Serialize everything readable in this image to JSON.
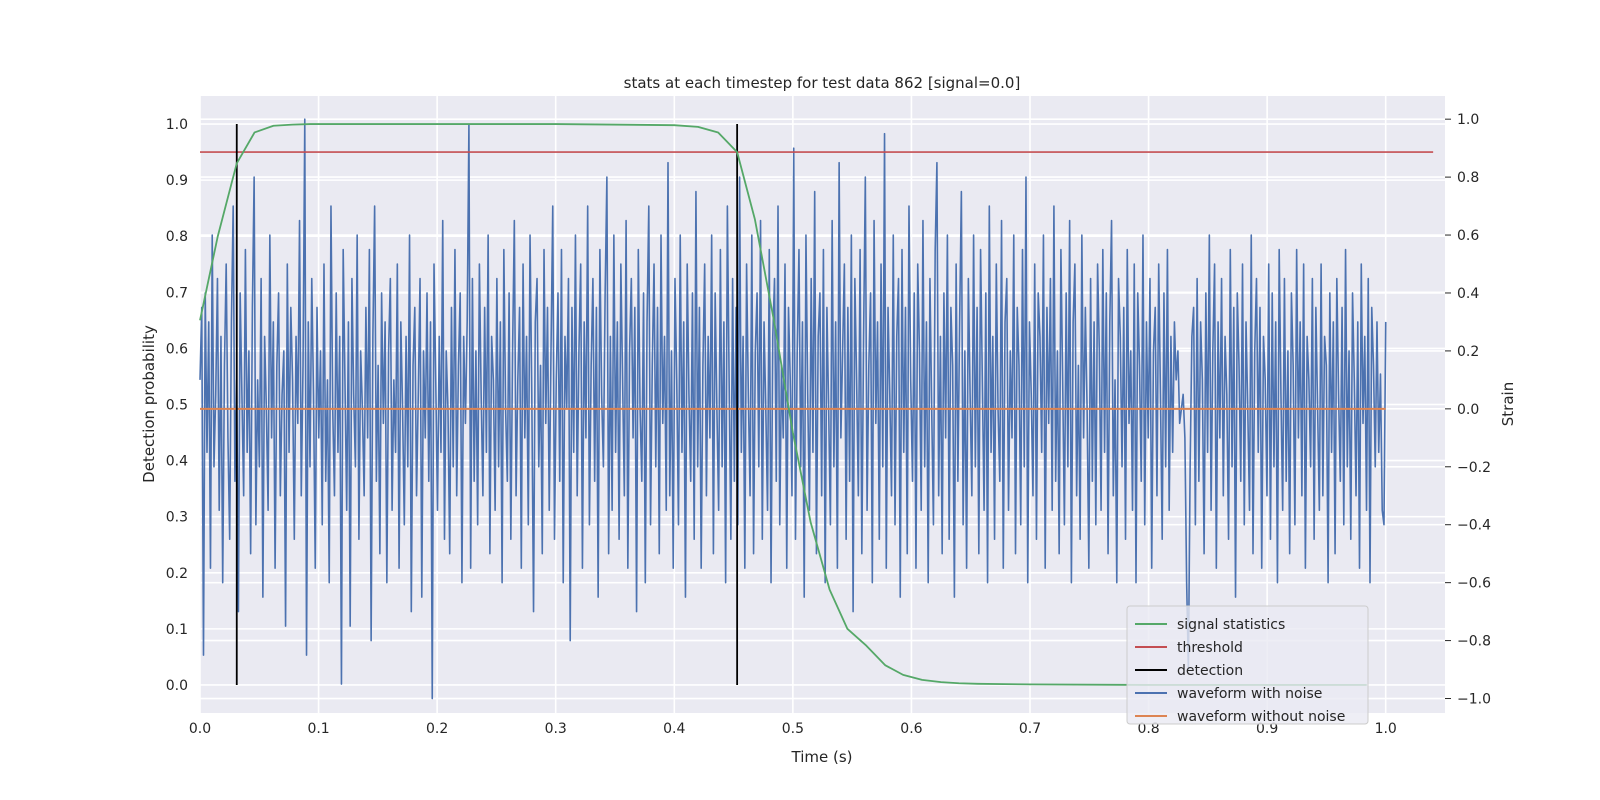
{
  "chart_data": {
    "type": "line",
    "title": "stats at each timestep for test data 862 [signal=0.0]",
    "xlabel": "Time (s)",
    "ylabel_left": "Detection probability",
    "ylabel_right": "Strain",
    "xlim": [
      0.0,
      1.05
    ],
    "ylim_left": [
      -0.05,
      1.05
    ],
    "ylim_right": [
      -1.05,
      1.08
    ],
    "x_ticks": [
      "0.0",
      "0.1",
      "0.2",
      "0.3",
      "0.4",
      "0.5",
      "0.6",
      "0.7",
      "0.8",
      "0.9",
      "1.0"
    ],
    "y_ticks_left": [
      "0.0",
      "0.1",
      "0.2",
      "0.3",
      "0.4",
      "0.5",
      "0.6",
      "0.7",
      "0.8",
      "0.9",
      "1.0"
    ],
    "y_ticks_right": [
      "−1.0",
      "−0.8",
      "−0.6",
      "−0.4",
      "−0.2",
      "0.0",
      "0.2",
      "0.4",
      "0.6",
      "0.8",
      "1.0"
    ],
    "grid": true,
    "legend_position": "lower-right",
    "colors": {
      "background": "#eaeaf2",
      "grid": "#ffffff",
      "signal_statistics": "#55a868",
      "threshold": "#c44e52",
      "detection": "#000000",
      "waveform_with_noise": "#4c72b0",
      "waveform_without_noise": "#dd8452"
    },
    "series": [
      {
        "name": "signal statistics",
        "axis": "left",
        "x": [
          0.0,
          0.015,
          0.031,
          0.046,
          0.062,
          0.078,
          0.093,
          0.12,
          0.2,
          0.3,
          0.4,
          0.42,
          0.437,
          0.453,
          0.468,
          0.484,
          0.5,
          0.515,
          0.531,
          0.546,
          0.562,
          0.578,
          0.593,
          0.609,
          0.625,
          0.64,
          0.656,
          0.7,
          0.8,
          0.9,
          0.984
        ],
        "y": [
          0.65,
          0.8,
          0.93,
          0.985,
          0.997,
          0.999,
          1.0,
          1.0,
          1.0,
          1.0,
          0.998,
          0.995,
          0.985,
          0.95,
          0.83,
          0.65,
          0.45,
          0.29,
          0.17,
          0.1,
          0.07,
          0.035,
          0.018,
          0.009,
          0.005,
          0.003,
          0.002,
          0.001,
          0.0,
          0.0,
          0.0
        ]
      },
      {
        "name": "threshold",
        "axis": "left",
        "x": [
          0.0,
          1.04
        ],
        "y": [
          0.95,
          0.95
        ]
      },
      {
        "name": "detection",
        "axis": "left",
        "x": [
          0.031,
          0.453
        ],
        "ymin": 0.0,
        "ymax": 1.0
      },
      {
        "name": "waveform with noise",
        "axis": "right",
        "x_start": 0.0,
        "x_end": 1.0,
        "y": [
          0.1,
          0.35,
          -0.85,
          0.4,
          -0.15,
          0.3,
          -0.55,
          0.6,
          -0.2,
          0.05,
          0.45,
          -0.35,
          0.25,
          -0.6,
          0.15,
          0.5,
          -0.1,
          -0.45,
          0.3,
          0.7,
          -0.25,
          0.1,
          -0.7,
          0.4,
          0.05,
          -0.3,
          0.55,
          -0.15,
          0.2,
          -0.5,
          0.35,
          0.8,
          -0.4,
          0.1,
          -0.2,
          0.45,
          -0.65,
          0.25,
          0.0,
          -0.35,
          0.6,
          -0.1,
          0.3,
          -0.55,
          0.15,
          0.4,
          -0.3,
          0.05,
          0.2,
          -0.75,
          0.5,
          -0.15,
          0.35,
          0.1,
          -0.45,
          0.25,
          -0.05,
          0.65,
          -0.3,
          0.15,
          1.0,
          -0.85,
          0.3,
          -0.2,
          0.45,
          0.05,
          -0.55,
          0.35,
          -0.1,
          0.2,
          -0.4,
          0.5,
          -0.25,
          0.1,
          -0.6,
          0.7,
          0.0,
          -0.3,
          0.4,
          -0.15,
          0.25,
          -0.95,
          0.55,
          0.1,
          -0.35,
          0.3,
          -0.75,
          0.45,
          0.05,
          -0.2,
          0.6,
          -0.45,
          0.2,
          0.0,
          -0.3,
          0.35,
          -0.1,
          0.55,
          -0.8,
          0.25,
          0.7,
          -0.25,
          0.15,
          -0.5,
          0.4,
          -0.05,
          0.3,
          -0.6,
          0.2,
          0.45,
          -0.35,
          0.1,
          -0.15,
          0.5,
          -0.55,
          0.3,
          0.0,
          -0.4,
          0.25,
          -0.2,
          0.6,
          -0.7,
          0.15,
          0.35,
          -0.3,
          0.05,
          0.45,
          -0.65,
          0.2,
          -0.1,
          0.4,
          -0.25,
          0.3,
          -1.0,
          0.5,
          0.1,
          -0.35,
          0.25,
          -0.15,
          0.65,
          -0.45,
          0.2,
          0.0,
          -0.5,
          0.35,
          -0.2,
          0.55,
          -0.3,
          0.15,
          0.4,
          -0.6,
          0.25,
          -0.05,
          0.3,
          0.98,
          -0.55,
          0.45,
          -0.25,
          0.2,
          -0.4,
          0.5,
          0.05,
          -0.3,
          0.35,
          -0.15,
          0.6,
          -0.5,
          0.25,
          0.1,
          -0.35,
          0.45,
          -0.2,
          0.3,
          -0.6,
          0.55,
          0.0,
          -0.25,
          0.4,
          -0.45,
          0.2,
          0.65,
          -0.3,
          0.1,
          0.35,
          -0.55,
          0.5,
          -0.1,
          0.25,
          -0.4,
          0.6,
          0.05,
          -0.7,
          0.3,
          0.45,
          -0.2,
          0.15,
          -0.5,
          0.55,
          -0.05,
          0.35,
          -0.35,
          0.2,
          0.7,
          -0.45,
          0.1,
          0.4,
          -0.25,
          0.55,
          -0.6,
          0.25,
          0.0,
          0.45,
          -0.8,
          0.35,
          -0.15,
          0.6,
          -0.3,
          0.2,
          0.5,
          -0.55,
          0.3,
          -0.1,
          0.7,
          -0.4,
          0.15,
          0.45,
          -0.25,
          0.35,
          -0.65,
          0.55,
          0.05,
          -0.2,
          0.4,
          0.8,
          -0.5,
          0.25,
          -0.35,
          0.6,
          -0.15,
          0.3,
          -0.45,
          0.5,
          0.1,
          -0.3,
          0.65,
          -0.55,
          0.2,
          0.45,
          -0.1,
          0.35,
          -0.7,
          0.55,
          0.0,
          -0.25,
          0.4,
          -0.6,
          0.3,
          0.7,
          -0.4,
          0.15,
          0.5,
          -0.2,
          0.35,
          -0.5,
          0.6,
          -0.05,
          0.25,
          -0.35,
          0.85,
          -0.3,
          0.2,
          -0.55,
          0.45,
          0.1,
          -0.4,
          0.6,
          -0.15,
          0.3,
          -0.65,
          0.5,
          0.05,
          -0.25,
          0.4,
          -0.45,
          0.75,
          -0.2,
          0.35,
          -0.55,
          0.15,
          0.5,
          -0.3,
          0.25,
          -0.1,
          0.6,
          -0.5,
          0.4,
          0.0,
          -0.35,
          0.55,
          -0.2,
          0.3,
          -0.6,
          0.7,
          0.1,
          -0.45,
          0.45,
          -0.25,
          0.35,
          -0.4,
          0.8,
          -0.15,
          0.25,
          -0.55,
          0.5,
          0.05,
          -0.3,
          0.6,
          -0.5,
          0.2,
          0.4,
          -0.2,
          0.65,
          -0.45,
          0.3,
          0.0,
          -0.35,
          0.55,
          -0.6,
          0.25,
          0.45,
          -0.25,
          0.7,
          -0.4,
          0.15,
          -0.1,
          0.5,
          -0.55,
          0.35,
          0.1,
          -0.3,
          0.9,
          -0.45,
          0.2,
          0.55,
          -0.2,
          0.3,
          -0.65,
          0.6,
          0.05,
          -0.35,
          0.45,
          -0.15,
          0.75,
          -0.5,
          0.25,
          0.4,
          -0.3,
          0.55,
          -0.6,
          0.35,
          0.0,
          -0.4,
          0.65,
          -0.2,
          0.3,
          -0.55,
          0.85,
          -0.1,
          0.2,
          0.5,
          -0.45,
          0.35,
          -0.25,
          0.6,
          -0.7,
          0.45,
          0.1,
          -0.3,
          0.55,
          -0.5,
          0.25,
          0.8,
          -0.35,
          0.15,
          0.4,
          -0.6,
          0.65,
          -0.05,
          0.3,
          -0.45,
          0.5,
          -0.2,
          0.95,
          -0.55,
          0.35,
          0.05,
          -0.3,
          0.6,
          -0.4,
          0.25,
          0.45,
          -0.65,
          0.55,
          -0.15,
          0.35,
          -0.5,
          0.7,
          0.1,
          -0.25,
          0.4,
          -0.55,
          0.5,
          0.2,
          -0.35,
          0.65,
          -0.2,
          0.3,
          -0.6,
          0.45,
          0.0,
          -0.4,
          0.55,
          0.85,
          -0.3,
          0.25,
          -0.5,
          0.4,
          -0.1,
          0.6,
          -0.45,
          0.35,
          0.15,
          -0.65,
          0.5,
          -0.25,
          0.3,
          0.75,
          -0.4,
          0.2,
          -0.55,
          0.45,
          0.05,
          -0.3,
          0.6,
          -0.2,
          0.35,
          -0.5,
          0.55,
          0.1,
          -0.35,
          0.4,
          -0.6,
          0.7,
          -0.15,
          0.25,
          -0.45,
          0.5,
          0.0,
          -0.25,
          0.65,
          -0.55,
          0.3,
          0.45,
          -0.35,
          0.2,
          -0.1,
          0.6,
          -0.5,
          0.35,
          0.15,
          -0.4,
          0.55,
          -0.2,
          0.8,
          -0.6,
          0.3,
          0.05,
          -0.3,
          0.5,
          -0.45,
          0.4,
          0.25,
          -0.15,
          0.6,
          -0.55,
          0.35,
          -0.05,
          0.45,
          -0.35,
          0.7,
          -0.25,
          0.2,
          -0.5,
          0.55,
          0.1,
          -0.4,
          0.4,
          -0.2,
          0.65,
          -0.6,
          0.3,
          0.5,
          -0.3,
          0.15,
          -0.45,
          0.6,
          -0.1,
          0.35,
          0.0,
          -0.55,
          0.45,
          -0.25,
          0.3,
          -0.4,
          0.5,
          0.2,
          -0.35,
          0.55,
          -0.15,
          0.4,
          -0.5,
          0.3,
          0.65,
          -0.3,
          0.1,
          -0.6,
          0.45,
          0.25,
          -0.2,
          0.35,
          -0.45,
          0.55,
          -0.05,
          0.2,
          -0.35,
          0.5,
          -0.6,
          0.4,
          0.15,
          -0.25,
          0.6,
          -0.4,
          0.3,
          -0.1,
          0.45,
          -0.55,
          0.2,
          0.35,
          -0.3,
          0.5,
          0.05,
          -0.45,
          0.4,
          -0.2,
          0.55,
          -0.35,
          0.25,
          -0.15,
          0.3,
          0.1,
          0.2,
          -0.05,
          0.0,
          0.05,
          -0.1,
          -0.6,
          -0.9,
          -0.2,
          0.25,
          0.35,
          -0.4,
          0.45,
          -0.25,
          0.3,
          0.1,
          -0.5,
          0.4,
          -0.15,
          0.6,
          -0.35,
          0.2,
          0.5,
          -0.55,
          0.3,
          -0.1,
          0.45,
          -0.3,
          0.25,
          0.05,
          -0.45,
          0.55,
          -0.2,
          0.35,
          -0.65,
          0.4,
          0.15,
          -0.25,
          0.5,
          -0.4,
          0.3,
          0.0,
          -0.35,
          0.6,
          -0.5,
          0.2,
          0.45,
          -0.15,
          0.35,
          -0.55,
          0.25,
          0.1,
          -0.3,
          0.5,
          -0.45,
          0.4,
          -0.2,
          0.3,
          -0.6,
          0.55,
          0.05,
          -0.35,
          0.45,
          -0.25,
          0.2,
          -0.5,
          0.4,
          0.15,
          -0.4,
          0.55,
          -0.1,
          0.3,
          -0.3,
          0.5,
          -0.55,
          0.25,
          0.1,
          -0.2,
          0.45,
          -0.45,
          0.35,
          0.0,
          -0.35,
          0.5,
          -0.3,
          0.25,
          0.15,
          -0.6,
          0.4,
          -0.15,
          0.3,
          -0.5,
          0.45,
          0.05,
          -0.25,
          0.35,
          -0.4,
          0.55,
          -0.2,
          0.2,
          -0.45,
          0.4,
          0.1,
          -0.3,
          0.3,
          -0.55,
          0.5,
          -0.05,
          0.25,
          -0.35,
          0.45,
          -0.6,
          0.35,
          0.15,
          -0.2,
          0.3,
          -0.15,
          0.12,
          -0.35,
          -0.4,
          0.3
        ]
      },
      {
        "name": "waveform without noise",
        "axis": "right",
        "x": [
          0.0,
          1.0
        ],
        "y": [
          0.0,
          0.0
        ]
      }
    ]
  }
}
